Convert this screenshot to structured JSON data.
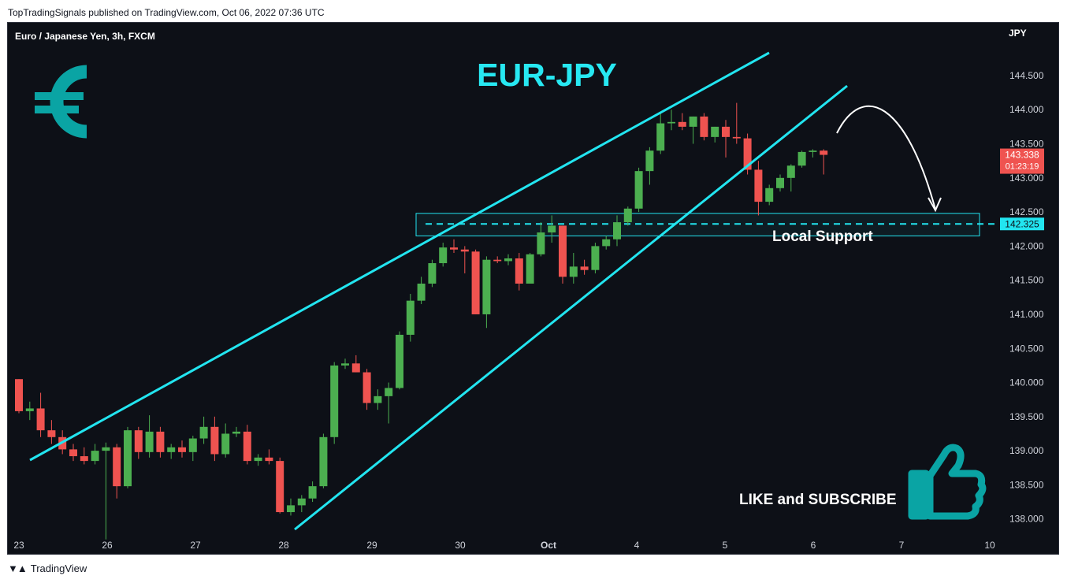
{
  "header": {
    "published": "TopTradingSignals published on TradingView.com, Oct 06, 2022 07:36 UTC"
  },
  "footer": {
    "brand": "TradingView"
  },
  "colors": {
    "background": "#0d1017",
    "up": "#4caf50",
    "down": "#ef5350",
    "channel": "#22e5f0",
    "title": "#27e8f2",
    "euro": "#0aa4a4",
    "thumb": "#0aa4a4"
  },
  "chart_data": {
    "type": "candlestick",
    "title": "EUR-JPY",
    "symbol": "Euro / Japanese Yen, 3h, FXCM",
    "currency": "JPY",
    "y_ticks": [
      "144.500",
      "144.000",
      "143.500",
      "143.000",
      "142.500",
      "142.000",
      "141.500",
      "141.000",
      "140.500",
      "140.000",
      "139.500",
      "139.000",
      "138.500",
      "138.000"
    ],
    "ylim": [
      137.65,
      145.1
    ],
    "x_ticks": [
      "23",
      "26",
      "27",
      "28",
      "29",
      "30",
      "Oct",
      "4",
      "5",
      "6",
      "7",
      "10"
    ],
    "last_price": "143.338",
    "countdown": "01:23:19",
    "support_price": 142.325,
    "support_label": "Local Support",
    "support_zone": [
      142.15,
      142.48
    ],
    "cta": "LIKE and SUBSCRIBE",
    "icons": [
      "euro-icon",
      "thumbs-up-icon"
    ],
    "candles": [
      [
        140.05,
        140.05,
        139.55,
        139.58
      ],
      [
        139.58,
        139.72,
        139.45,
        139.62
      ],
      [
        139.62,
        139.85,
        139.2,
        139.3
      ],
      [
        139.3,
        139.45,
        139.1,
        139.2
      ],
      [
        139.2,
        139.3,
        138.95,
        139.02
      ],
      [
        139.02,
        139.1,
        138.85,
        138.92
      ],
      [
        138.92,
        139.05,
        138.8,
        138.85
      ],
      [
        138.85,
        139.1,
        138.8,
        139.0
      ],
      [
        139.0,
        139.12,
        137.7,
        139.05
      ],
      [
        139.05,
        139.1,
        138.3,
        138.48
      ],
      [
        138.48,
        139.35,
        138.45,
        139.3
      ],
      [
        139.3,
        139.35,
        138.88,
        138.98
      ],
      [
        138.98,
        139.52,
        138.9,
        139.28
      ],
      [
        139.28,
        139.35,
        138.9,
        138.98
      ],
      [
        138.98,
        139.1,
        138.88,
        139.05
      ],
      [
        139.05,
        139.15,
        138.9,
        138.98
      ],
      [
        138.98,
        139.22,
        138.85,
        139.18
      ],
      [
        139.18,
        139.5,
        139.1,
        139.35
      ],
      [
        139.35,
        139.5,
        138.85,
        138.95
      ],
      [
        138.95,
        139.4,
        138.9,
        139.25
      ],
      [
        139.25,
        139.35,
        139.2,
        139.28
      ],
      [
        139.28,
        139.38,
        138.8,
        138.85
      ],
      [
        138.85,
        138.95,
        138.78,
        138.9
      ],
      [
        138.9,
        139.02,
        138.8,
        138.85
      ],
      [
        138.85,
        138.9,
        138.08,
        138.1
      ],
      [
        138.1,
        138.3,
        138.05,
        138.2
      ],
      [
        138.2,
        138.35,
        138.1,
        138.3
      ],
      [
        138.3,
        138.55,
        138.25,
        138.48
      ],
      [
        138.48,
        139.25,
        138.45,
        139.2
      ],
      [
        139.2,
        140.3,
        139.1,
        140.25
      ],
      [
        140.25,
        140.35,
        140.2,
        140.28
      ],
      [
        140.28,
        140.4,
        140.15,
        140.15
      ],
      [
        140.15,
        140.2,
        139.6,
        139.7
      ],
      [
        139.7,
        139.9,
        139.6,
        139.8
      ],
      [
        139.8,
        140.0,
        139.4,
        139.92
      ],
      [
        139.92,
        140.75,
        139.9,
        140.7
      ],
      [
        140.7,
        141.3,
        140.6,
        141.2
      ],
      [
        141.2,
        141.55,
        141.15,
        141.45
      ],
      [
        141.45,
        141.8,
        141.4,
        141.75
      ],
      [
        141.75,
        142.05,
        141.7,
        141.98
      ],
      [
        141.98,
        142.1,
        141.9,
        141.95
      ],
      [
        141.95,
        142.0,
        141.6,
        141.92
      ],
      [
        141.92,
        141.95,
        141.0,
        141.0
      ],
      [
        141.0,
        141.85,
        140.8,
        141.8
      ],
      [
        141.8,
        141.85,
        141.75,
        141.78
      ],
      [
        141.78,
        141.88,
        141.72,
        141.82
      ],
      [
        141.82,
        141.9,
        141.35,
        141.45
      ],
      [
        141.45,
        141.9,
        141.45,
        141.88
      ],
      [
        141.88,
        142.35,
        141.85,
        142.2
      ],
      [
        142.2,
        142.45,
        142.05,
        142.3
      ],
      [
        142.3,
        142.3,
        141.45,
        141.55
      ],
      [
        141.55,
        141.9,
        141.45,
        141.7
      ],
      [
        141.7,
        141.8,
        141.58,
        141.65
      ],
      [
        141.65,
        142.05,
        141.6,
        142.0
      ],
      [
        142.0,
        142.15,
        141.95,
        142.1
      ],
      [
        142.1,
        142.45,
        142.0,
        142.35
      ],
      [
        142.35,
        142.58,
        142.3,
        142.55
      ],
      [
        142.55,
        143.15,
        142.5,
        143.1
      ],
      [
        143.1,
        143.45,
        142.9,
        143.4
      ],
      [
        143.4,
        143.95,
        143.35,
        143.8
      ],
      [
        143.8,
        144.0,
        143.7,
        143.82
      ],
      [
        143.82,
        143.95,
        143.7,
        143.75
      ],
      [
        143.75,
        143.9,
        143.5,
        143.9
      ],
      [
        143.9,
        143.95,
        143.55,
        143.6
      ],
      [
        143.6,
        143.75,
        143.52,
        143.75
      ],
      [
        143.75,
        143.85,
        143.3,
        143.6
      ],
      [
        143.6,
        144.1,
        143.5,
        143.58
      ],
      [
        143.58,
        143.65,
        143.05,
        143.12
      ],
      [
        143.12,
        143.25,
        142.45,
        142.65
      ],
      [
        142.65,
        142.9,
        142.6,
        142.85
      ],
      [
        142.85,
        143.05,
        142.8,
        143.0
      ],
      [
        143.0,
        143.2,
        142.8,
        143.18
      ],
      [
        143.18,
        143.4,
        143.15,
        143.38
      ],
      [
        143.38,
        143.42,
        143.3,
        143.4
      ],
      [
        143.4,
        143.42,
        143.05,
        143.338
      ]
    ]
  }
}
